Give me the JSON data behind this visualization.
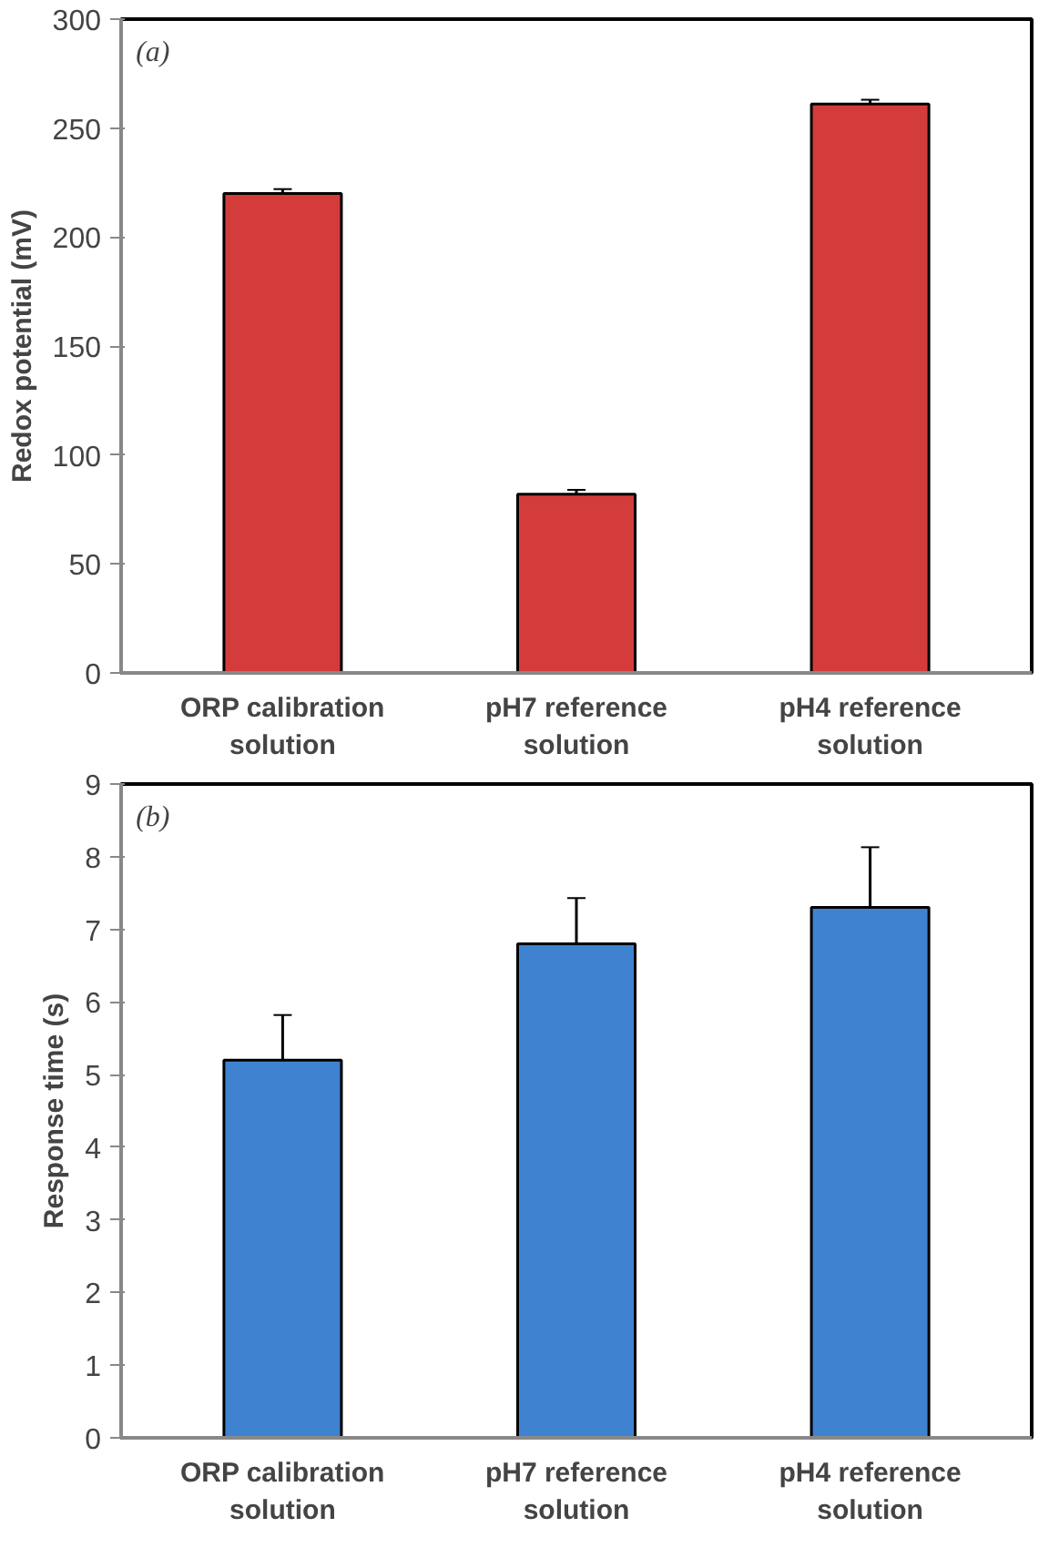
{
  "chart_data": [
    {
      "type": "bar",
      "ylabel": "Redox potential (mV)",
      "categories": [
        "ORP calibration solution",
        "pH7 reference solution",
        "pH4 reference solution"
      ],
      "values": [
        220,
        82,
        261
      ],
      "errors": [
        2,
        2,
        2
      ],
      "color": "#d43c3c",
      "ylim": [
        0,
        300
      ],
      "yticks": [
        0,
        50,
        100,
        150,
        200,
        250,
        300
      ],
      "grid": false,
      "annotations": [
        "(a)"
      ]
    },
    {
      "type": "bar",
      "ylabel": "Response time (s)",
      "categories": [
        "ORP calibration solution",
        "pH7 reference solution",
        "pH4 reference solution"
      ],
      "values": [
        5.2,
        6.8,
        7.3
      ],
      "errors": [
        0.62,
        0.63,
        0.83
      ],
      "color": "#3f83d0",
      "ylim": [
        0,
        9
      ],
      "yticks": [
        0,
        1,
        2,
        3,
        4,
        5,
        6,
        7,
        8,
        9
      ],
      "grid": false,
      "annotations": [
        "(b)"
      ]
    }
  ]
}
